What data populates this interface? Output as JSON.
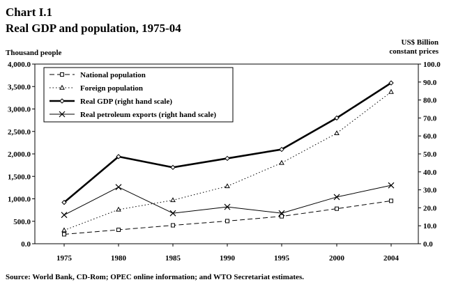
{
  "chart_data": {
    "type": "line",
    "title": "Chart I.1",
    "subtitle": "Real GDP and population, 1975-04",
    "ylabel_left": "Thousand people",
    "ylabel_right_line1": "US$ Billion",
    "ylabel_right_line2": "constant prices",
    "categories": [
      "1975",
      "1980",
      "1985",
      "1990",
      "1995",
      "2000",
      "2004"
    ],
    "y_left": {
      "min": 0,
      "max": 4000,
      "ticks": [
        "0.0",
        "500.0",
        "1,000.0",
        "1,500.0",
        "2,000.0",
        "2,500.0",
        "3,000.0",
        "3,500.0",
        "4,000.0"
      ]
    },
    "y_right": {
      "min": 0,
      "max": 100,
      "ticks": [
        "0.0",
        "10.0",
        "20.0",
        "30.0",
        "40.0",
        "50.0",
        "60.0",
        "70.0",
        "80.0",
        "90.0",
        "100.0"
      ]
    },
    "series": [
      {
        "name": "National population",
        "axis": "left",
        "style": "dashed",
        "marker": "square",
        "values": [
          210,
          310,
          410,
          505,
          610,
          780,
          955
        ]
      },
      {
        "name": "Foreign population",
        "axis": "left",
        "style": "dotted",
        "marker": "triangle",
        "values": [
          300,
          760,
          970,
          1280,
          1800,
          2460,
          3380
        ]
      },
      {
        "name": "Real GDP (right hand scale)",
        "axis": "right",
        "style": "thick",
        "marker": "diamond",
        "values": [
          23,
          48.5,
          42.5,
          47.5,
          52.5,
          70,
          89.5
        ]
      },
      {
        "name": "Real petroleum exports (right hand scale)",
        "axis": "right",
        "style": "solid",
        "marker": "x",
        "values": [
          16,
          31.5,
          17,
          20.5,
          17,
          26,
          32.5
        ]
      }
    ],
    "legend_position": "top-left",
    "grid": false,
    "source": "Source: World Bank, CD-Rom; OPEC online information; and WTO Secretariat estimates."
  }
}
